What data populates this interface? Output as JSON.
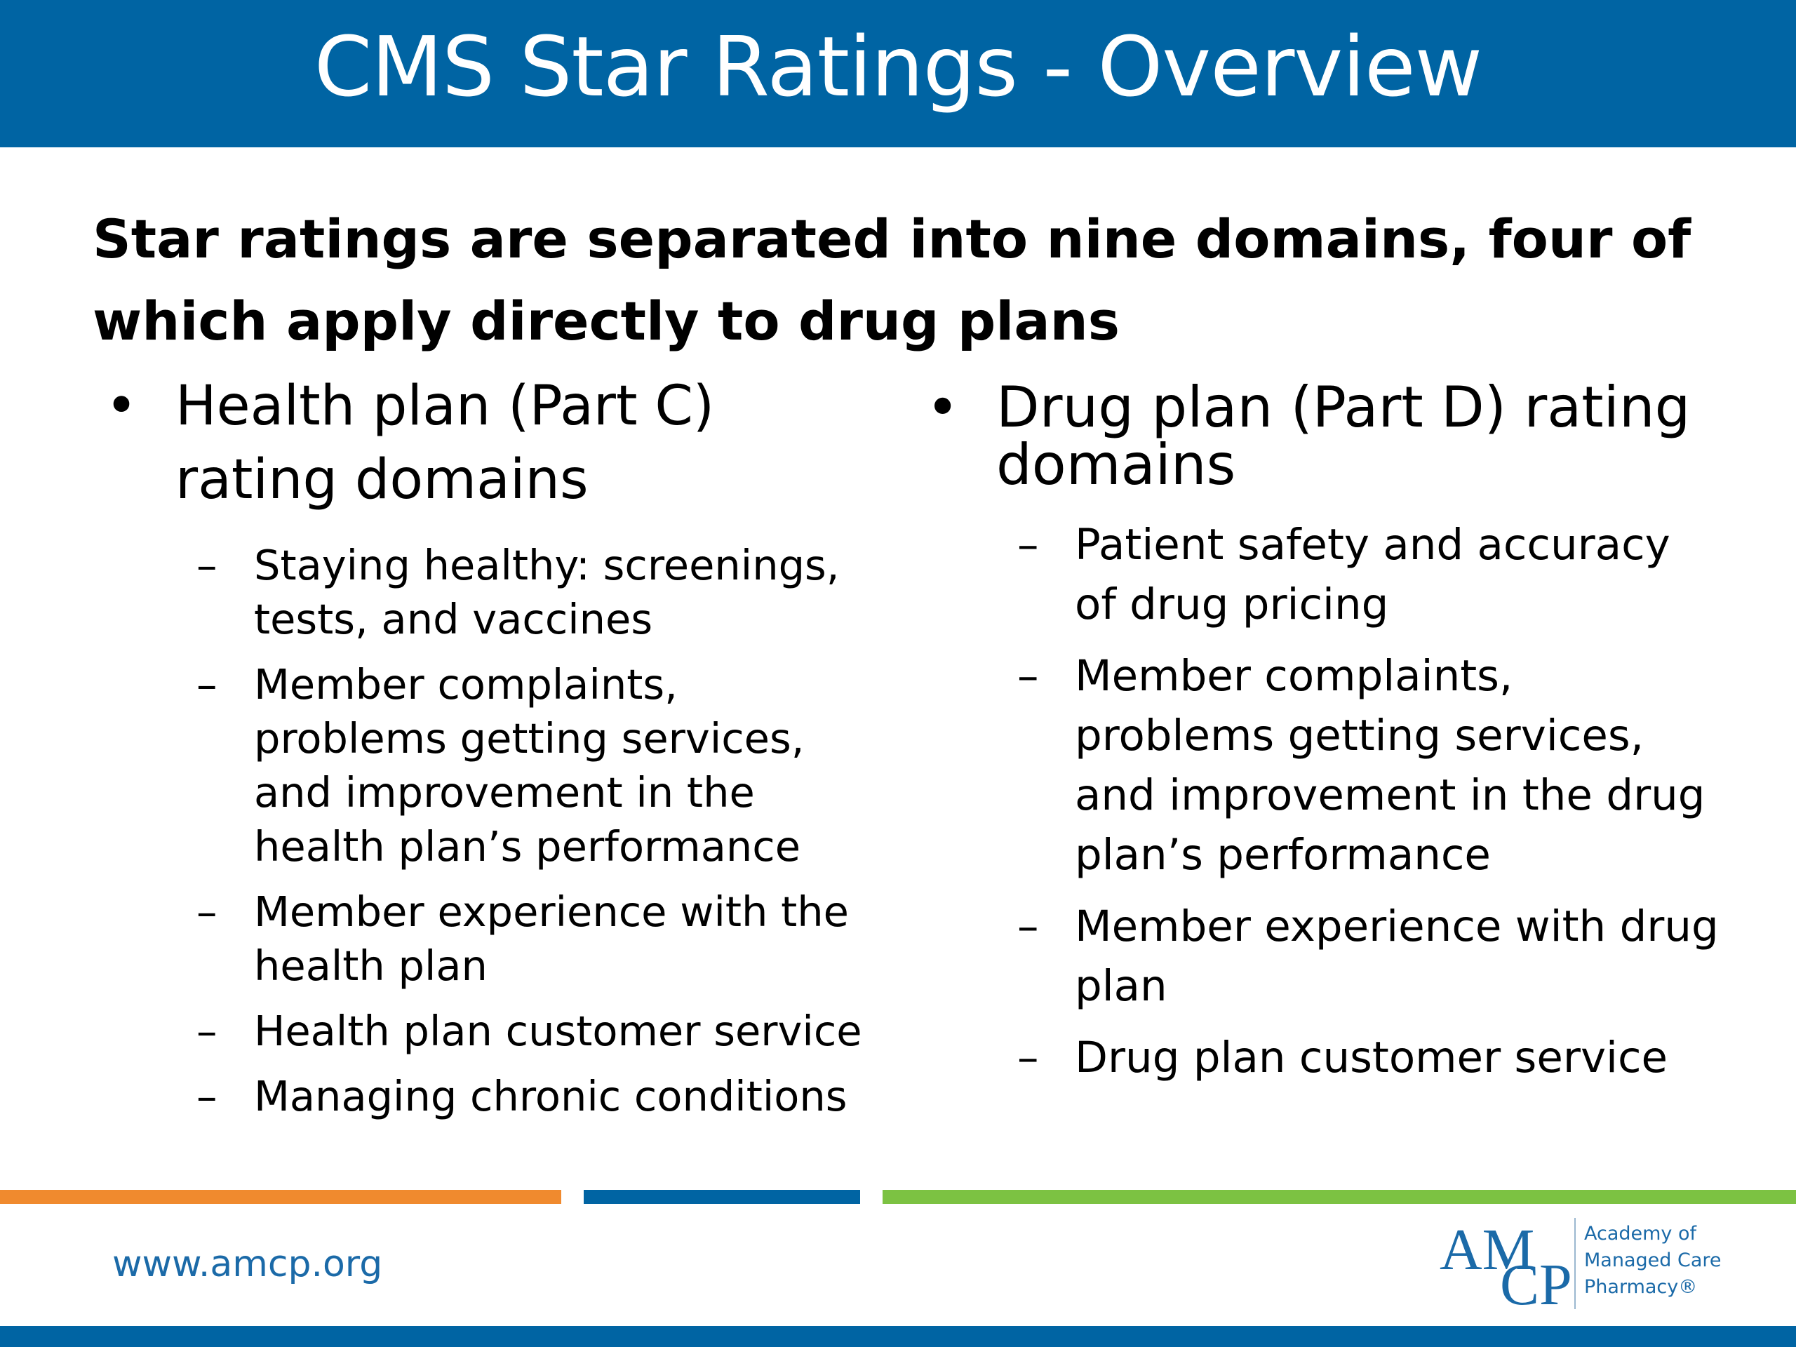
{
  "slide": {
    "title": "CMS Star Ratings - Overview",
    "headline": "Star ratings are separated into nine domains, four of which apply directly to drug plans",
    "bullet_symbol": "•",
    "dash_symbol": "–",
    "left": {
      "heading_line1": "Health plan (Part C)",
      "heading_line2": "rating domains",
      "items": [
        "Staying healthy: screenings, tests, and vaccines",
        "Member complaints, problems getting services, and improvement in the health plan’s performance",
        "Member experience with the health plan",
        "Health plan customer service",
        "Managing chronic conditions"
      ]
    },
    "right": {
      "heading_line1": "Drug plan (Part D) rating",
      "heading_line2": "domains",
      "items": [
        "Patient safety and accuracy of drug pricing",
        "Member complaints, problems getting services, and improvement in the drug plan’s performance",
        "Member experience with drug plan",
        "Drug plan customer service"
      ]
    }
  },
  "footer": {
    "url": "www.amcp.org",
    "logo": {
      "mark_top": "AM",
      "mark_bottom": "CP",
      "line1": "Academy of",
      "line2": "Managed Care",
      "line3": "Pharmacy®"
    }
  },
  "colors": {
    "title_bar": "#0064a3",
    "stripe_orange": "#f08a2e",
    "stripe_blue": "#0064a3",
    "stripe_green": "#7cc242",
    "link": "#1b6aa8"
  }
}
